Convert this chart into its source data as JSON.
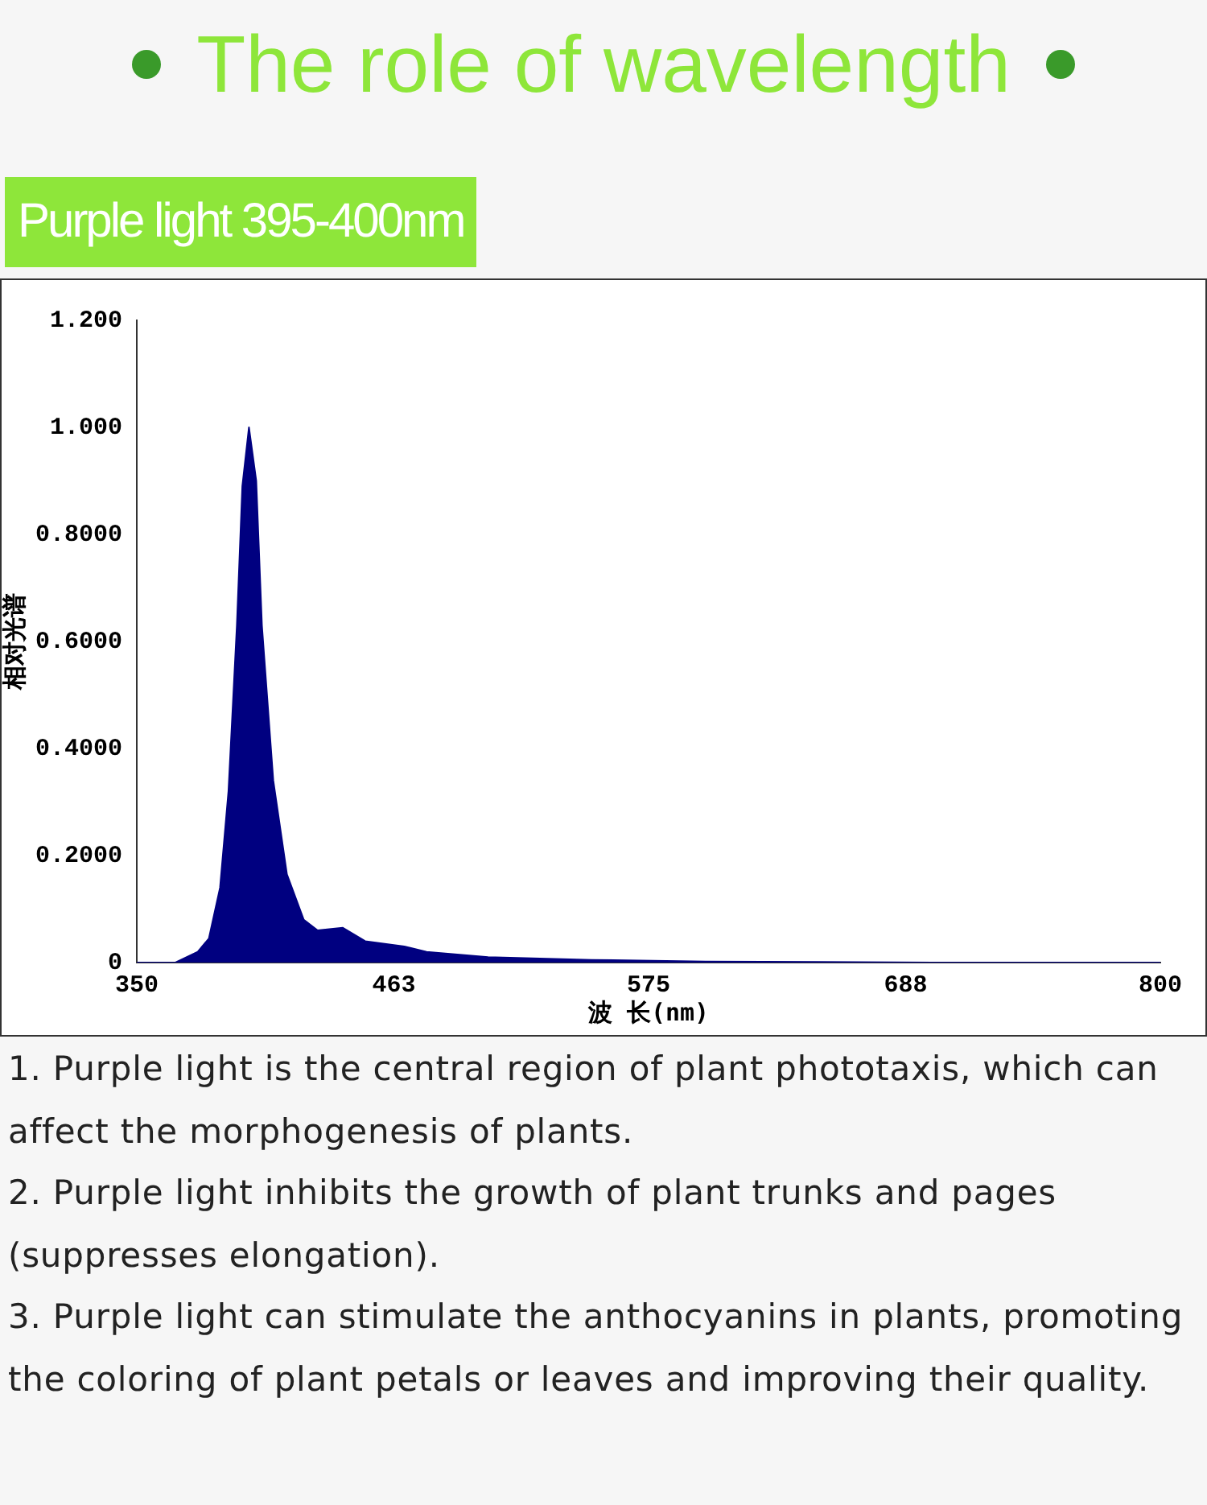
{
  "chart_data": {
    "type": "area",
    "title": "The role of wavelength",
    "subtitle": "Purple light 395-400nm",
    "xlabel": "波 长(nm)",
    "ylabel": "相对光谱",
    "x": [
      350,
      367,
      376.8,
      381.7,
      386.6,
      390.3,
      394,
      396.4,
      399.3,
      402.5,
      405,
      410,
      416,
      423.4,
      429.5,
      440.6,
      450.4,
      467.6,
      477.4,
      504.4,
      550,
      600,
      650,
      700,
      800
    ],
    "series": [
      {
        "color": "#000080",
        "values": [
          0,
          0,
          0.02,
          0.045,
          0.14,
          0.32,
          0.63,
          0.89,
          1.0,
          0.9,
          0.63,
          0.34,
          0.165,
          0.08,
          0.06,
          0.065,
          0.04,
          0.03,
          0.02,
          0.01,
          0.005,
          0.002,
          0.001,
          0,
          0
        ]
      }
    ],
    "xlim": [
      350,
      800
    ],
    "xticks": [
      350,
      463,
      575,
      688,
      800
    ],
    "ylim": [
      0,
      1.2
    ],
    "yticks": [
      0,
      {
        "value": 0.2,
        "label": "0.2000"
      },
      {
        "value": 0.4,
        "label": "0.4000"
      },
      {
        "value": 0.6,
        "label": "0.6000"
      },
      {
        "value": 0.8,
        "label": "0.8000"
      },
      {
        "value": 1,
        "label": "1.000"
      },
      {
        "value": 1.2,
        "label": "1.200"
      }
    ],
    "grid": false,
    "legend": false,
    "marker": "none",
    "annotations": [
      "1. Purple light is the central region of plant phototaxis, which can affect the morphogenesis of plants.",
      "2. Purple light inhibits the growth of plant trunks and pages (suppresses elongation).",
      "3. Purple light can stimulate the anthocyanins in plants, promoting the coloring of plant petals or leaves and improving their quality."
    ]
  }
}
